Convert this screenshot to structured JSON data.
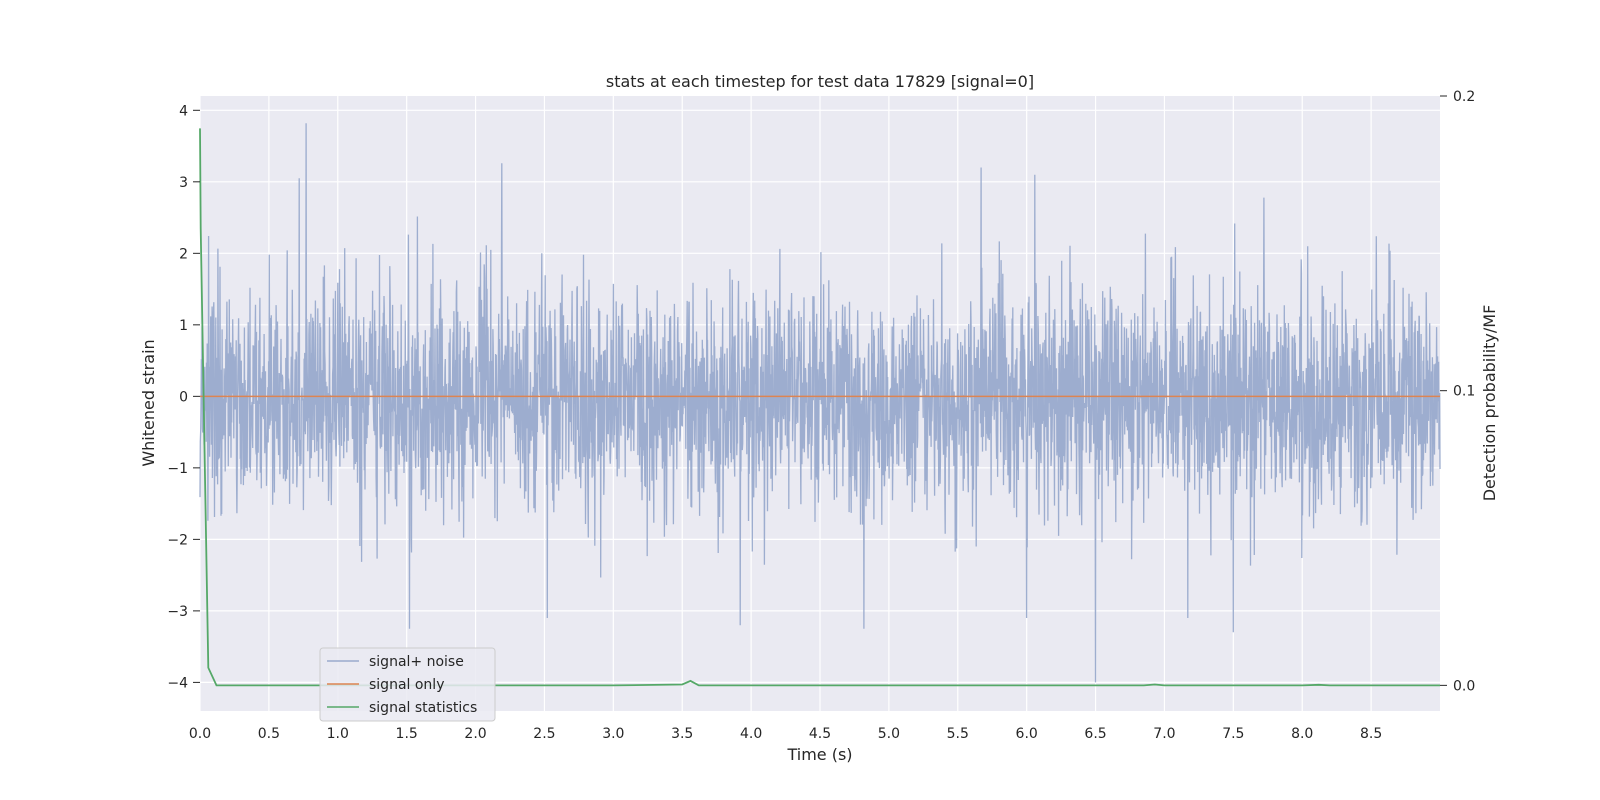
{
  "chart_data": {
    "type": "line",
    "title": "stats at each timestep for test data 17829 [signal=0]",
    "xlabel": "Time (s)",
    "ylabel": "Whitened strain",
    "y2label": "Detection probability/MF",
    "xlim": [
      0.0,
      9.0
    ],
    "ylim": [
      -4.4,
      4.2
    ],
    "y2lim": [
      -0.0087,
      0.2
    ],
    "x_ticks": [
      "0.0",
      "0.5",
      "1.0",
      "1.5",
      "2.0",
      "2.5",
      "3.0",
      "3.5",
      "4.0",
      "4.5",
      "5.0",
      "5.5",
      "6.0",
      "6.5",
      "7.0",
      "7.5",
      "8.0",
      "8.5"
    ],
    "y_ticks": [
      "4",
      "3",
      "2",
      "1",
      "0",
      "−1",
      "−2",
      "−3",
      "−4"
    ],
    "y2_ticks": [
      "0.2",
      "0.1",
      "0.0"
    ],
    "grid": true,
    "legend_position": "lower-left",
    "colors": {
      "noise": "#99aacc",
      "signal": "#dd8452",
      "stats": "#55a868",
      "plot_bg": "#eaeaf2",
      "grid": "#ffffff"
    },
    "series": [
      {
        "name": "signal+ noise",
        "axis": "left",
        "note_envelope": "dense noise; approx range",
        "x_start": 0.0,
        "x_end": 9.0,
        "typical_range": [
          -2.0,
          2.2
        ],
        "peaks": [
          {
            "x": 0.77,
            "y": 3.82
          },
          {
            "x": 0.72,
            "y": 3.05
          },
          {
            "x": 2.19,
            "y": 3.26
          },
          {
            "x": 5.67,
            "y": 3.2
          },
          {
            "x": 6.5,
            "y": 3.15
          },
          {
            "x": 6.06,
            "y": 3.1
          },
          {
            "x": 6.5,
            "y": -4.0
          },
          {
            "x": 1.52,
            "y": -3.25
          },
          {
            "x": 4.82,
            "y": -3.25
          },
          {
            "x": 7.5,
            "y": -3.3
          },
          {
            "x": 2.52,
            "y": -3.1
          },
          {
            "x": 7.17,
            "y": -3.1
          },
          {
            "x": 6.0,
            "y": -3.1
          },
          {
            "x": 3.92,
            "y": -3.2
          }
        ]
      },
      {
        "name": "signal only",
        "axis": "left",
        "x": [
          0.0,
          9.0
        ],
        "y": [
          0.0,
          0.0
        ]
      },
      {
        "name": "signal statistics",
        "axis": "right",
        "x": [
          0.0,
          0.005,
          0.06,
          0.12,
          0.5,
          1.0,
          2.0,
          3.0,
          3.5,
          3.56,
          3.62,
          4.0,
          5.0,
          6.0,
          6.85,
          6.93,
          7.0,
          8.0,
          8.12,
          8.2,
          9.0
        ],
        "y": [
          0.189,
          0.155,
          0.006,
          0.0,
          0.0,
          0.0,
          0.0,
          0.0,
          0.0003,
          0.0015,
          0.0,
          0.0,
          0.0,
          0.0,
          0.0,
          0.0003,
          0.0,
          0.0,
          0.0002,
          0.0,
          0.0
        ]
      }
    ],
    "legend": [
      "signal+ noise",
      "signal only",
      "signal statistics"
    ]
  }
}
